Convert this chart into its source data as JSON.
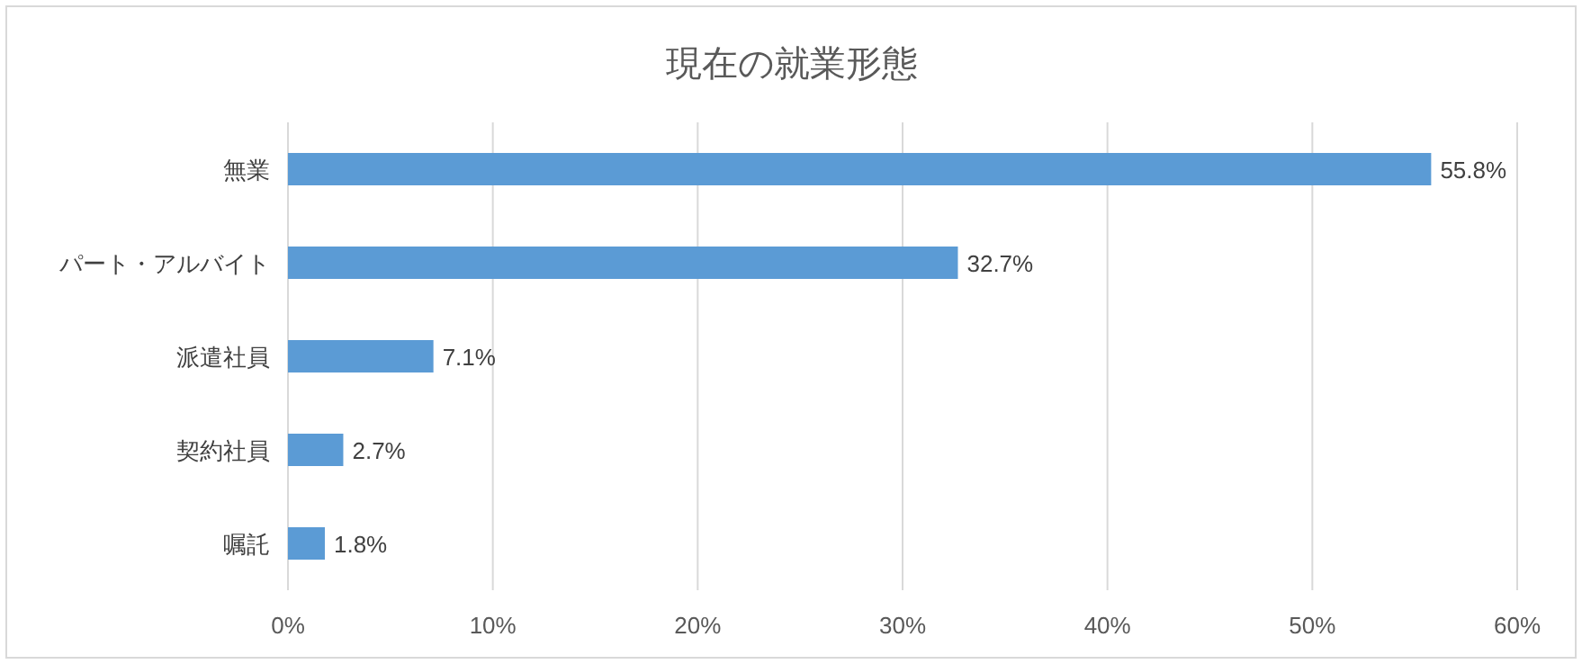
{
  "chart_data": {
    "type": "bar",
    "orientation": "horizontal",
    "title": "現在の就業形態",
    "categories": [
      "無業",
      "パート・アルバイト",
      "派遣社員",
      "契約社員",
      "嘱託"
    ],
    "values": [
      55.8,
      32.7,
      7.1,
      2.7,
      1.8
    ],
    "value_labels": [
      "55.8%",
      "32.7%",
      "7.1%",
      "2.7%",
      "1.8%"
    ],
    "color": "#5b9bd5",
    "xlim": [
      0,
      60
    ],
    "xticks": [
      {
        "value": 0,
        "label": "0%"
      },
      {
        "value": 10,
        "label": "10%"
      },
      {
        "value": 20,
        "label": "20%"
      },
      {
        "value": 30,
        "label": "30%"
      },
      {
        "value": 40,
        "label": "40%"
      },
      {
        "value": 50,
        "label": "50%"
      },
      {
        "value": 60,
        "label": "60%"
      }
    ],
    "grid": "x"
  }
}
